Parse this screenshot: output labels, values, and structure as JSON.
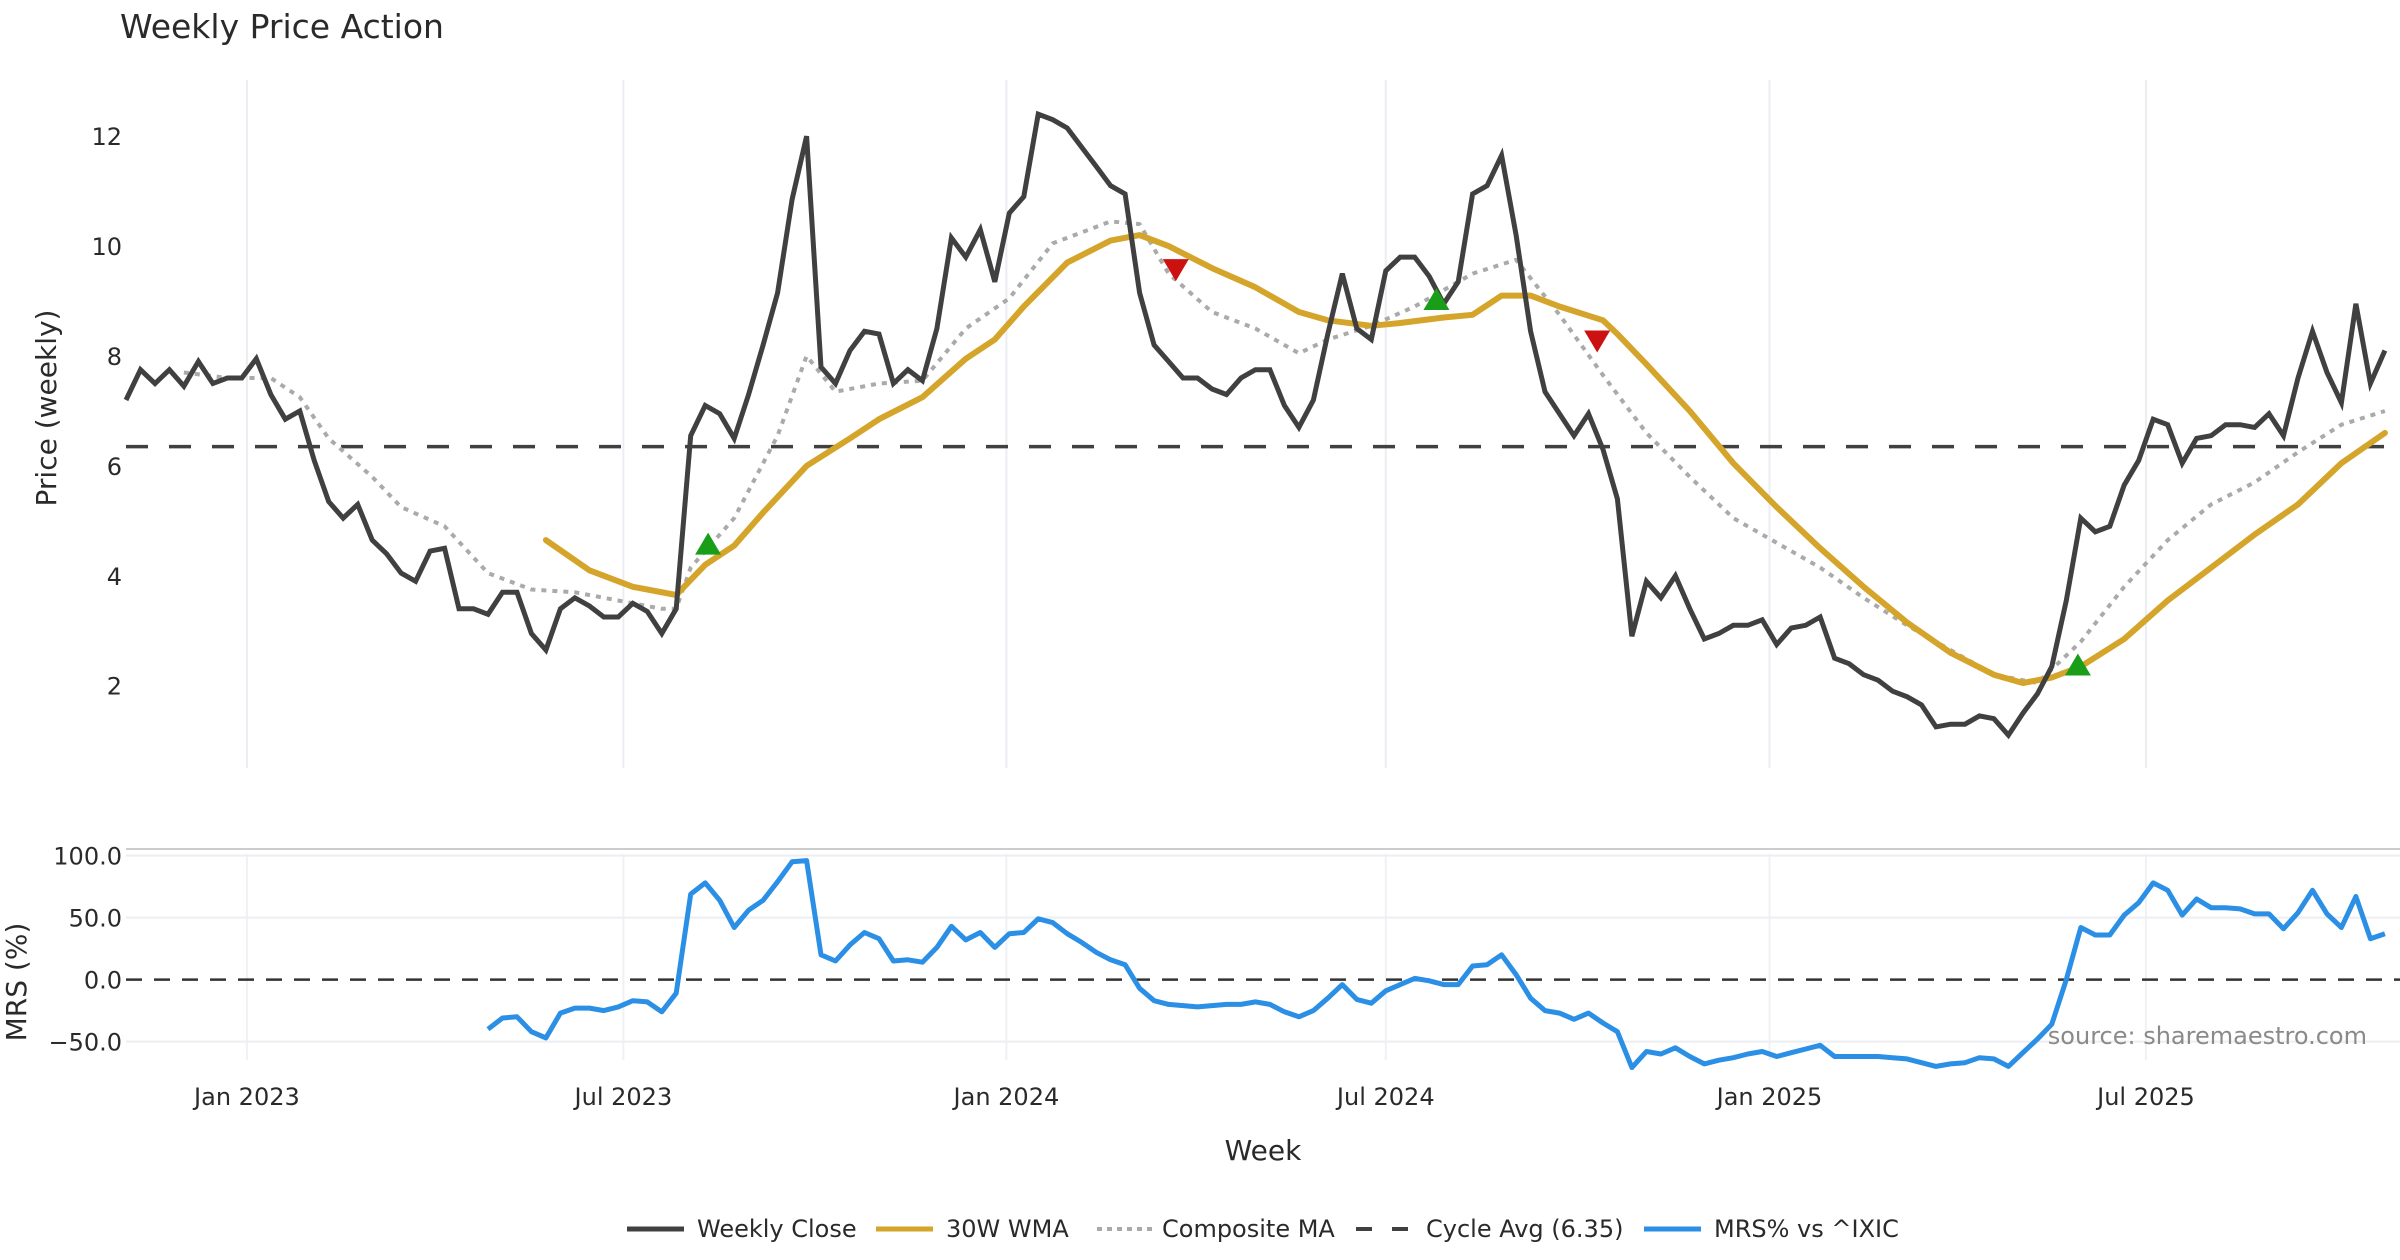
{
  "chart_data": [
    {
      "type": "line",
      "title": "Weekly Price Action",
      "ylabel": "Price (weekly)",
      "xlabel": "Week",
      "ylim": [
        0.5,
        13.0
      ],
      "yticks": [
        2,
        4,
        6,
        8,
        10,
        12
      ],
      "x_start_week_offset_from_jan2023": -8.35,
      "xticks": [
        {
          "label": "Jan 2023",
          "week": 8.35
        },
        {
          "label": "Jul 2023",
          "week": 34.35
        },
        {
          "label": "Jan 2024",
          "week": 60.8
        },
        {
          "label": "Jul 2024",
          "week": 87.0
        },
        {
          "label": "Jan 2025",
          "week": 113.5
        },
        {
          "label": "Jul 2025",
          "week": 139.5
        }
      ],
      "grid": "vertical",
      "series": [
        {
          "name": "Weekly Close",
          "color": "#404040",
          "style": "solid",
          "values": [
            7.2,
            7.75,
            7.5,
            7.75,
            7.45,
            7.9,
            7.5,
            7.6,
            7.6,
            7.95,
            7.3,
            6.85,
            7.0,
            6.1,
            5.35,
            5.05,
            5.3,
            4.65,
            4.4,
            4.05,
            3.9,
            4.45,
            4.5,
            3.4,
            3.4,
            3.3,
            3.7,
            3.7,
            2.95,
            2.65,
            3.4,
            3.6,
            3.45,
            3.25,
            3.25,
            3.5,
            3.35,
            2.95,
            3.4,
            6.55,
            7.1,
            6.95,
            6.5,
            7.3,
            8.2,
            9.15,
            10.85,
            12.0,
            7.8,
            7.5,
            8.1,
            8.45,
            8.4,
            7.5,
            7.75,
            7.55,
            8.5,
            10.15,
            9.8,
            10.3,
            9.35,
            10.6,
            10.9,
            12.4,
            12.3,
            12.15,
            11.8,
            11.45,
            11.1,
            10.95,
            9.15,
            8.2,
            7.9,
            7.6,
            7.6,
            7.4,
            7.3,
            7.6,
            7.75,
            7.75,
            7.1,
            6.7,
            7.2,
            8.4,
            9.5,
            8.5,
            8.3,
            9.55,
            9.8,
            9.8,
            9.45,
            8.95,
            9.35,
            10.95,
            11.1,
            11.65,
            10.2,
            8.45,
            7.35,
            6.95,
            6.55,
            6.95,
            6.3,
            5.4,
            2.9,
            3.9,
            3.6,
            4.0,
            3.4,
            2.85,
            2.95,
            3.1,
            3.1,
            3.2,
            2.75,
            3.05,
            3.1,
            3.25,
            2.5,
            2.4,
            2.2,
            2.1,
            1.9,
            1.8,
            1.65,
            1.25,
            1.3,
            1.3,
            1.45,
            1.4,
            1.1,
            1.5,
            1.85,
            2.35,
            3.55,
            5.05,
            4.8,
            4.9,
            5.65,
            6.1,
            6.85,
            6.75,
            6.05,
            6.5,
            6.55,
            6.75,
            6.75,
            6.7,
            6.95,
            6.55,
            7.6,
            8.45,
            7.7,
            7.15,
            8.95,
            7.5,
            8.1
          ]
        },
        {
          "name": "30W WMA",
          "color": "#D4A52A",
          "style": "solid",
          "points": [
            [
              29,
              4.65
            ],
            [
              32,
              4.1
            ],
            [
              35,
              3.8
            ],
            [
              38,
              3.65
            ],
            [
              40,
              4.2
            ],
            [
              42,
              4.55
            ],
            [
              44,
              5.15
            ],
            [
              47,
              6.0
            ],
            [
              50,
              6.5
            ],
            [
              52,
              6.85
            ],
            [
              55,
              7.25
            ],
            [
              58,
              7.95
            ],
            [
              60,
              8.3
            ],
            [
              62,
              8.9
            ],
            [
              65,
              9.7
            ],
            [
              68,
              10.1
            ],
            [
              70,
              10.2
            ],
            [
              72,
              10.0
            ],
            [
              75,
              9.6
            ],
            [
              78,
              9.25
            ],
            [
              81,
              8.8
            ],
            [
              83,
              8.65
            ],
            [
              86,
              8.55
            ],
            [
              88,
              8.6
            ],
            [
              91,
              8.7
            ],
            [
              93,
              8.75
            ],
            [
              95,
              9.1
            ],
            [
              97,
              9.1
            ],
            [
              99,
              8.9
            ],
            [
              102,
              8.65
            ],
            [
              103,
              8.4
            ],
            [
              105,
              7.85
            ],
            [
              108,
              7.0
            ],
            [
              111,
              6.05
            ],
            [
              114,
              5.25
            ],
            [
              117,
              4.5
            ],
            [
              120,
              3.8
            ],
            [
              123,
              3.15
            ],
            [
              126,
              2.6
            ],
            [
              129,
              2.2
            ],
            [
              131,
              2.05
            ],
            [
              133,
              2.15
            ],
            [
              135,
              2.35
            ],
            [
              138,
              2.85
            ],
            [
              141,
              3.55
            ],
            [
              144,
              4.15
            ],
            [
              147,
              4.75
            ],
            [
              150,
              5.3
            ],
            [
              153,
              6.05
            ],
            [
              156,
              6.6
            ]
          ]
        },
        {
          "name": "Composite MA",
          "color": "#AAAAAA",
          "style": "dotted",
          "points": [
            [
              4,
              7.7
            ],
            [
              7,
              7.6
            ],
            [
              10,
              7.6
            ],
            [
              12,
              7.25
            ],
            [
              14,
              6.5
            ],
            [
              17,
              5.8
            ],
            [
              19,
              5.25
            ],
            [
              22,
              4.9
            ],
            [
              25,
              4.05
            ],
            [
              28,
              3.75
            ],
            [
              31,
              3.7
            ],
            [
              34,
              3.55
            ],
            [
              37,
              3.4
            ],
            [
              38,
              3.4
            ],
            [
              39,
              4.15
            ],
            [
              42,
              5.05
            ],
            [
              45,
              6.55
            ],
            [
              47,
              8.0
            ],
            [
              49,
              7.35
            ],
            [
              52,
              7.5
            ],
            [
              55,
              7.55
            ],
            [
              58,
              8.5
            ],
            [
              61,
              9.05
            ],
            [
              64,
              10.05
            ],
            [
              68,
              10.45
            ],
            [
              70,
              10.4
            ],
            [
              72,
              9.5
            ],
            [
              75,
              8.8
            ],
            [
              78,
              8.5
            ],
            [
              81,
              8.05
            ],
            [
              83,
              8.3
            ],
            [
              86,
              8.55
            ],
            [
              89,
              8.9
            ],
            [
              93,
              9.5
            ],
            [
              96,
              9.75
            ],
            [
              99,
              8.75
            ],
            [
              102,
              7.65
            ],
            [
              105,
              6.6
            ],
            [
              108,
              5.8
            ],
            [
              111,
              5.05
            ],
            [
              114,
              4.6
            ],
            [
              117,
              4.15
            ],
            [
              120,
              3.6
            ],
            [
              123,
              3.1
            ],
            [
              126,
              2.65
            ],
            [
              129,
              2.2
            ],
            [
              132,
              2.05
            ],
            [
              135,
              2.8
            ],
            [
              138,
              3.8
            ],
            [
              141,
              4.65
            ],
            [
              144,
              5.3
            ],
            [
              147,
              5.7
            ],
            [
              150,
              6.25
            ],
            [
              153,
              6.75
            ],
            [
              156,
              7.0
            ]
          ]
        },
        {
          "name": "Cycle Avg (6.35)",
          "color": "#404040",
          "style": "dashed",
          "value": 6.35
        }
      ],
      "markers": [
        {
          "type": "buy",
          "week": 40.2,
          "price": 4.55,
          "color": "#1A9E1A"
        },
        {
          "type": "sell",
          "week": 72.5,
          "price": 9.6,
          "color": "#CC1111"
        },
        {
          "type": "buy",
          "week": 90.5,
          "price": 9.0,
          "color": "#1A9E1A"
        },
        {
          "type": "sell",
          "week": 101.6,
          "price": 8.3,
          "color": "#CC1111"
        },
        {
          "type": "buy",
          "week": 134.8,
          "price": 2.35,
          "color": "#1A9E1A"
        }
      ]
    },
    {
      "type": "line",
      "ylabel": "MRS (%)",
      "ylim": [
        -80,
        105
      ],
      "yticks": [
        {
          "value": 100,
          "label": "100.0"
        },
        {
          "value": 50,
          "label": "50.0"
        },
        {
          "value": 0,
          "label": "0.0"
        },
        {
          "value": -50,
          "label": "−50.0"
        }
      ],
      "zero_line": "dashed",
      "series": [
        {
          "name": "MRS% vs ^IXIC",
          "color": "#2B8FE6",
          "start_week": 25,
          "values": [
            -40,
            -31,
            -30,
            -42,
            -47,
            -27,
            -23,
            -23,
            -25,
            -22,
            -17,
            -18,
            -26,
            -11,
            69,
            78,
            64,
            42,
            56,
            64,
            79,
            95,
            96,
            20,
            15,
            28,
            38,
            33,
            15,
            16,
            14,
            26,
            43,
            32,
            38,
            26,
            37,
            38,
            49,
            46,
            37,
            30,
            22,
            16,
            12,
            -7,
            -17,
            -20,
            -21,
            -22,
            -21,
            -20,
            -20,
            -18,
            -20,
            -26,
            -30,
            -25,
            -15,
            -4,
            -16,
            -19,
            -9,
            -4,
            1,
            -1,
            -4,
            -4,
            11,
            12,
            20,
            4,
            -15,
            -25,
            -27,
            -32,
            -27,
            -35,
            -42,
            -71,
            -58,
            -60,
            -55,
            -62,
            -68,
            -65,
            -63,
            -60,
            -58,
            -62,
            -59,
            -56,
            -53,
            -62,
            -62,
            -62,
            -62,
            -63,
            -64,
            -67,
            -70,
            -68,
            -67,
            -63,
            -64,
            -70,
            -59,
            -48,
            -36,
            0,
            42,
            36,
            36,
            52,
            62,
            78,
            72,
            52,
            65,
            58,
            58,
            57,
            53,
            53,
            41,
            54,
            72,
            53,
            42,
            67,
            33,
            37
          ]
        }
      ],
      "annotation": "source: sharemaestro.com"
    }
  ],
  "legend": {
    "position": "bottom-center",
    "items": [
      {
        "label": "Weekly Close",
        "color": "#404040",
        "style": "solid"
      },
      {
        "label": "30W WMA",
        "color": "#D4A52A",
        "style": "solid"
      },
      {
        "label": "Composite MA",
        "color": "#AAAAAA",
        "style": "dotted"
      },
      {
        "label": "Cycle Avg (6.35)",
        "color": "#404040",
        "style": "dashed"
      },
      {
        "label": "MRS% vs ^IXIC",
        "color": "#2B8FE6",
        "style": "solid"
      }
    ]
  }
}
